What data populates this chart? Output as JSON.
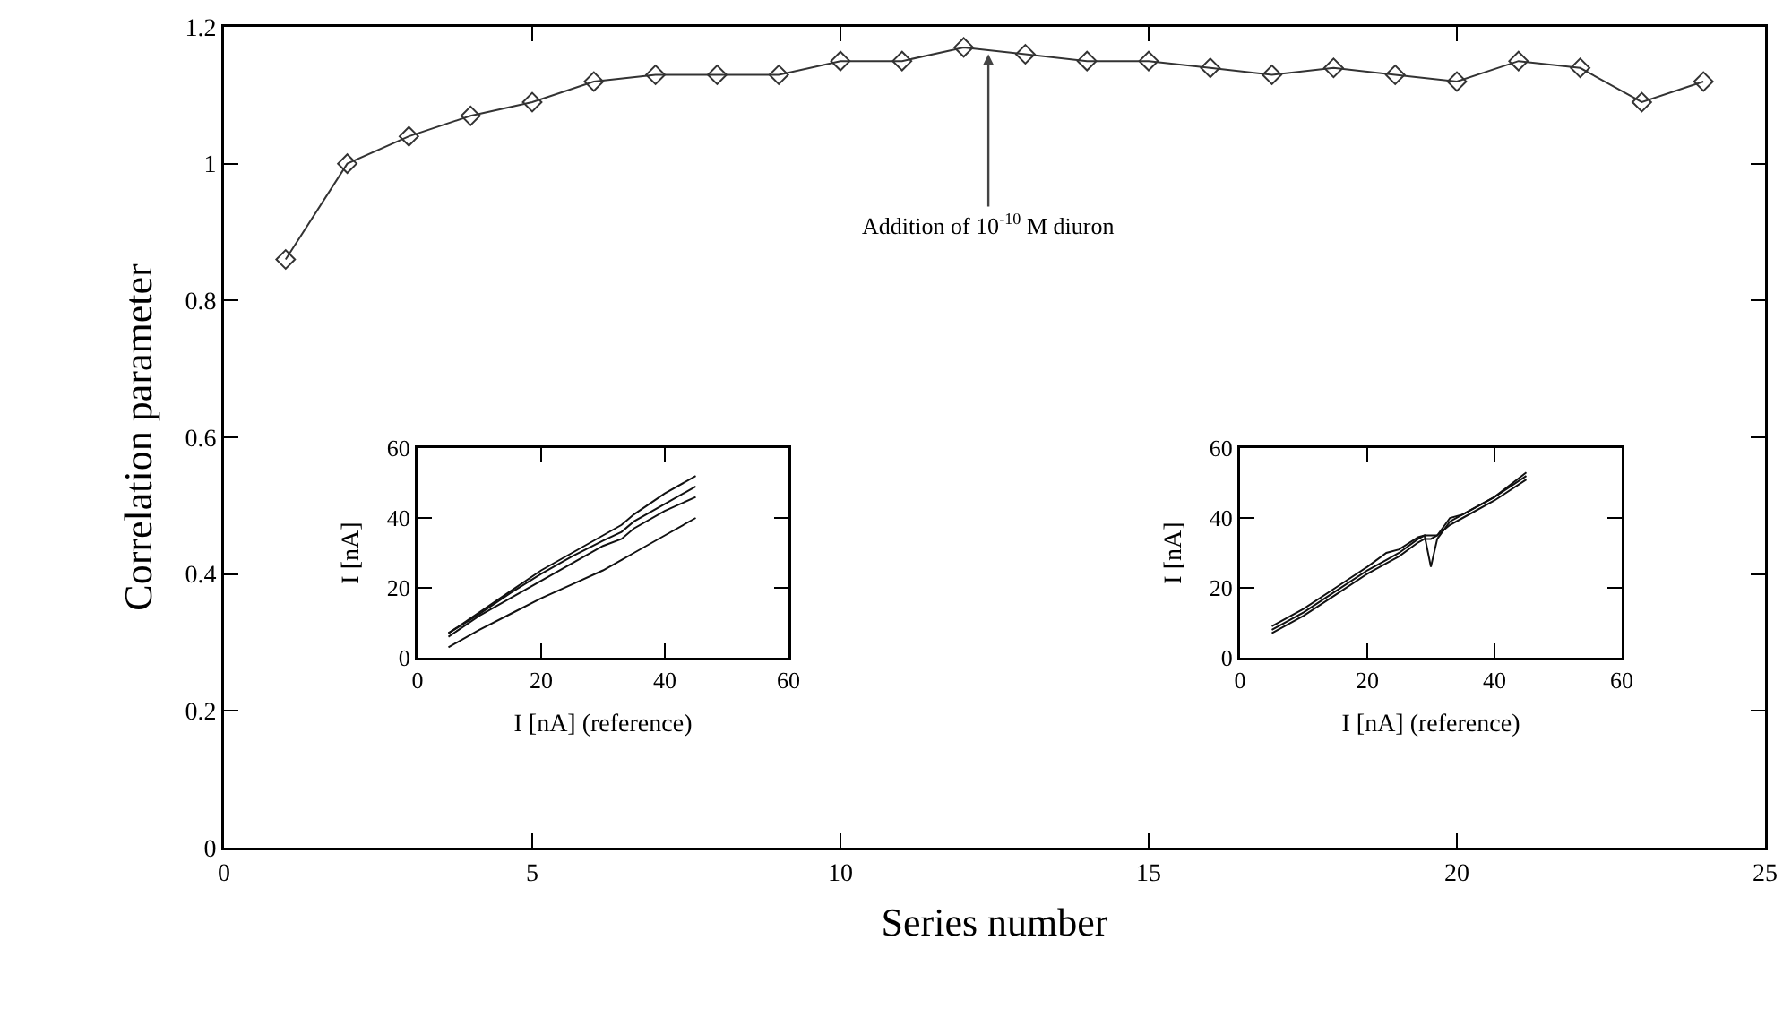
{
  "chart_data": [
    {
      "type": "line",
      "xlabel": "Series number",
      "ylabel": "Correlation parameter",
      "marker": "diamond",
      "x": [
        1,
        2,
        3,
        4,
        5,
        6,
        7,
        8,
        9,
        10,
        11,
        12,
        13,
        14,
        15,
        16,
        17,
        18,
        19,
        20,
        21,
        22,
        23,
        24
      ],
      "series": [
        {
          "color": "#333333",
          "values": [
            0.86,
            1.0,
            1.04,
            1.07,
            1.09,
            1.12,
            1.13,
            1.13,
            1.13,
            1.15,
            1.15,
            1.17,
            1.16,
            1.15,
            1.15,
            1.14,
            1.13,
            1.14,
            1.13,
            1.12,
            1.15,
            1.14,
            1.09,
            1.12
          ]
        }
      ],
      "xlim": [
        0,
        25
      ],
      "xticks": [
        0,
        5,
        10,
        15,
        20,
        25
      ],
      "ylim": [
        0,
        1.2
      ],
      "yticks": [
        0,
        0.2,
        0.4,
        0.6,
        0.8,
        1,
        1.2
      ],
      "annotations": [
        {
          "text": "Addition of 10$^{-10}$ M diuron",
          "x": 12.4,
          "y": 1.16
        }
      ]
    },
    {
      "type": "line",
      "xlabel": "I [nA] (reference)",
      "ylabel": "I [nA]",
      "marker": "none",
      "x": [
        5,
        10,
        15,
        20,
        25,
        30,
        33,
        35,
        40,
        45
      ],
      "series": [
        {
          "color": "#111111",
          "values": [
            7,
            13,
            19,
            25,
            30,
            35,
            38,
            41,
            47,
            52
          ]
        },
        {
          "color": "#111111",
          "values": [
            7,
            12.5,
            18.5,
            24,
            29,
            33.5,
            36,
            39,
            44,
            49
          ]
        },
        {
          "color": "#111111",
          "values": [
            6,
            12,
            17,
            22,
            27,
            32,
            34,
            37,
            42,
            46
          ]
        },
        {
          "color": "#111111",
          "values": [
            3,
            8,
            12.5,
            17,
            21,
            25,
            28,
            30,
            35,
            40
          ]
        }
      ],
      "xlim": [
        0,
        60
      ],
      "xticks": [
        0,
        20,
        40,
        60
      ],
      "ylim": [
        0,
        60
      ],
      "yticks": [
        0,
        20,
        40,
        60
      ]
    },
    {
      "type": "line",
      "xlabel": "I [nA] (reference)",
      "ylabel": "I [nA]",
      "marker": "none",
      "x": [
        5,
        10,
        15,
        20,
        23,
        25,
        28,
        29,
        30,
        31,
        33,
        35,
        40,
        45
      ],
      "series": [
        {
          "color": "#111111",
          "values": [
            9,
            14,
            20,
            26,
            30,
            31,
            34.5,
            35,
            35,
            35,
            40,
            41,
            46,
            53
          ]
        },
        {
          "color": "#111111",
          "values": [
            8,
            13,
            19,
            25,
            28,
            30,
            34,
            35,
            26,
            34,
            39,
            41,
            46,
            52
          ]
        },
        {
          "color": "#111111",
          "values": [
            7,
            12,
            18,
            24,
            27,
            29,
            33,
            34,
            34,
            35,
            38,
            40,
            45,
            51
          ]
        }
      ],
      "xlim": [
        0,
        60
      ],
      "xticks": [
        0,
        20,
        40,
        60
      ],
      "ylim": [
        0,
        60
      ],
      "yticks": [
        0,
        20,
        40,
        60
      ]
    }
  ]
}
